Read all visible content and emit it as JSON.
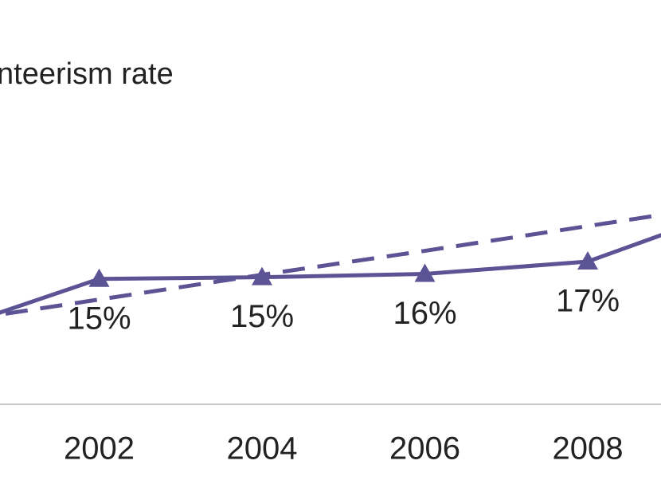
{
  "chart_data": {
    "type": "line",
    "title": "nteerism rate",
    "categories": [
      null,
      "2002",
      "2004",
      "2006",
      "2008",
      null
    ],
    "series": [
      {
        "color": "#5b5394",
        "values": [
          8.5,
          15.2,
          15.4,
          15.8,
          17.3,
          24.4
        ],
        "value_labels": [
          null,
          "15%",
          "15%",
          "16%",
          "17%",
          null
        ],
        "marker": "triangle"
      },
      {
        "color": "#5b5394",
        "values": [
          9.7,
          12.7,
          15.7,
          18.6,
          21.6,
          24.6
        ],
        "dashed": true
      }
    ],
    "ylim": [
      0,
      49
    ]
  }
}
